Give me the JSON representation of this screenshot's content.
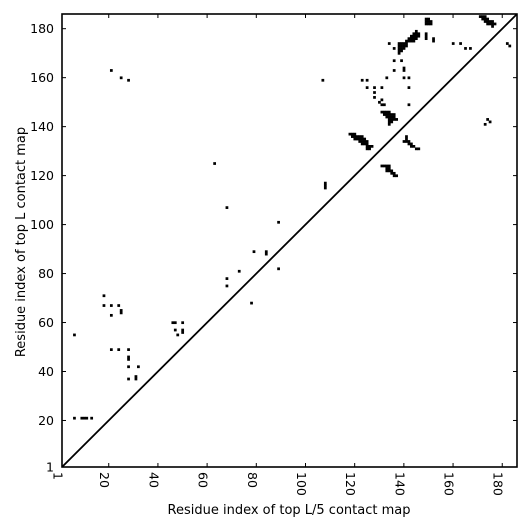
{
  "chart_data": {
    "type": "scatter",
    "marker": "square",
    "title": "",
    "xlabel": "Residue index of top L/5 contact map",
    "ylabel": "Residue index of top L contact map",
    "xlim": [
      1,
      186
    ],
    "ylim": [
      1,
      186
    ],
    "xticks": [
      1,
      20,
      40,
      60,
      80,
      100,
      120,
      140,
      160,
      180
    ],
    "yticks": [
      1,
      20,
      40,
      60,
      80,
      100,
      120,
      140,
      160,
      180
    ],
    "grid": false,
    "diagonal": true,
    "colors": {
      "marker": "#000000",
      "diagonal": "#000000",
      "background": "#ffffff"
    },
    "points_upper": [
      [
        21,
        163
      ],
      [
        25,
        160
      ],
      [
        28,
        159
      ],
      [
        63,
        125
      ],
      [
        68,
        107
      ],
      [
        89,
        101
      ],
      [
        79,
        89
      ],
      [
        84,
        89
      ],
      [
        84,
        88
      ],
      [
        73,
        81
      ],
      [
        89,
        82
      ],
      [
        68,
        78
      ],
      [
        68,
        75
      ],
      [
        78,
        68
      ],
      [
        107,
        159
      ],
      [
        108,
        117
      ],
      [
        108,
        116
      ],
      [
        108,
        115
      ],
      [
        123,
        159
      ],
      [
        125,
        159
      ],
      [
        125,
        156
      ],
      [
        128,
        156
      ],
      [
        128,
        154
      ],
      [
        128,
        152
      ],
      [
        131,
        156
      ],
      [
        131,
        151
      ],
      [
        130,
        150
      ],
      [
        131,
        149
      ],
      [
        132,
        149
      ],
      [
        133,
        160
      ],
      [
        134,
        174
      ],
      [
        136,
        172
      ],
      [
        136,
        167
      ],
      [
        139,
        167
      ],
      [
        136,
        163
      ],
      [
        140,
        164
      ],
      [
        140,
        163
      ],
      [
        140,
        160
      ],
      [
        142,
        160
      ],
      [
        142,
        156
      ],
      [
        142,
        149
      ],
      [
        131,
        146
      ],
      [
        132,
        146
      ],
      [
        133,
        146
      ],
      [
        134,
        146
      ],
      [
        132,
        145
      ],
      [
        133,
        145
      ],
      [
        134,
        145
      ],
      [
        135,
        145
      ],
      [
        136,
        145
      ],
      [
        133,
        144
      ],
      [
        134,
        144
      ],
      [
        135,
        144
      ],
      [
        136,
        144
      ],
      [
        134,
        143
      ],
      [
        135,
        143
      ],
      [
        136,
        143
      ],
      [
        137,
        143
      ],
      [
        134,
        142
      ],
      [
        135,
        142
      ],
      [
        134,
        141
      ],
      [
        118,
        137
      ],
      [
        119,
        137
      ],
      [
        120,
        137
      ],
      [
        119,
        136
      ],
      [
        120,
        136
      ],
      [
        121,
        136
      ],
      [
        122,
        136
      ],
      [
        123,
        136
      ],
      [
        120,
        135
      ],
      [
        121,
        135
      ],
      [
        122,
        135
      ],
      [
        123,
        135
      ],
      [
        124,
        135
      ],
      [
        122,
        134
      ],
      [
        123,
        134
      ],
      [
        124,
        134
      ],
      [
        125,
        134
      ],
      [
        123,
        133
      ],
      [
        124,
        133
      ],
      [
        125,
        133
      ],
      [
        125,
        132
      ],
      [
        126,
        132
      ],
      [
        127,
        132
      ],
      [
        125,
        131
      ],
      [
        126,
        131
      ],
      [
        131,
        124
      ],
      [
        132,
        124
      ],
      [
        133,
        124
      ],
      [
        134,
        124
      ],
      [
        133,
        123
      ],
      [
        134,
        123
      ],
      [
        133,
        122
      ],
      [
        134,
        122
      ],
      [
        135,
        122
      ],
      [
        135,
        121
      ],
      [
        136,
        121
      ],
      [
        136,
        120
      ],
      [
        137,
        120
      ],
      [
        141,
        136
      ],
      [
        141,
        135
      ],
      [
        140,
        134
      ],
      [
        141,
        134
      ],
      [
        142,
        134
      ],
      [
        142,
        133
      ],
      [
        143,
        133
      ],
      [
        143,
        132
      ],
      [
        144,
        132
      ],
      [
        145,
        131
      ],
      [
        146,
        131
      ],
      [
        138,
        174
      ],
      [
        139,
        174
      ],
      [
        140,
        174
      ],
      [
        141,
        174
      ],
      [
        138,
        173
      ],
      [
        139,
        173
      ],
      [
        140,
        173
      ],
      [
        141,
        173
      ],
      [
        138,
        172
      ],
      [
        139,
        172
      ],
      [
        140,
        172
      ],
      [
        138,
        171
      ],
      [
        139,
        171
      ],
      [
        138,
        170
      ],
      [
        141,
        175
      ],
      [
        142,
        175
      ],
      [
        143,
        175
      ],
      [
        144,
        175
      ],
      [
        142,
        176
      ],
      [
        143,
        176
      ],
      [
        144,
        176
      ],
      [
        145,
        176
      ],
      [
        143,
        177
      ],
      [
        144,
        177
      ],
      [
        145,
        177
      ],
      [
        146,
        177
      ],
      [
        144,
        178
      ],
      [
        145,
        178
      ],
      [
        146,
        178
      ],
      [
        145,
        179
      ],
      [
        149,
        184
      ],
      [
        150,
        184
      ],
      [
        149,
        183
      ],
      [
        150,
        183
      ],
      [
        151,
        183
      ],
      [
        149,
        182
      ],
      [
        150,
        182
      ],
      [
        151,
        182
      ],
      [
        149,
        178
      ],
      [
        149,
        177
      ],
      [
        149,
        176
      ],
      [
        152,
        176
      ],
      [
        152,
        175
      ],
      [
        160,
        174
      ],
      [
        163,
        174
      ],
      [
        165,
        172
      ],
      [
        167,
        172
      ],
      [
        171,
        185
      ],
      [
        172,
        185
      ],
      [
        173,
        185
      ],
      [
        172,
        184
      ],
      [
        173,
        184
      ],
      [
        174,
        184
      ],
      [
        173,
        183
      ],
      [
        174,
        183
      ],
      [
        175,
        183
      ],
      [
        176,
        183
      ],
      [
        174,
        182
      ],
      [
        175,
        182
      ],
      [
        176,
        182
      ],
      [
        177,
        182
      ],
      [
        176,
        181
      ],
      [
        174,
        143
      ],
      [
        173,
        141
      ],
      [
        175,
        142
      ],
      [
        182,
        174
      ],
      [
        183,
        173
      ]
    ],
    "points_lower": [
      [
        6,
        55
      ],
      [
        6,
        21
      ],
      [
        9,
        21
      ],
      [
        10,
        21
      ],
      [
        11,
        21
      ],
      [
        13,
        21
      ],
      [
        18,
        71
      ],
      [
        18,
        67
      ],
      [
        21,
        67
      ],
      [
        21,
        63
      ],
      [
        24,
        67
      ],
      [
        25,
        65
      ],
      [
        25,
        64
      ],
      [
        21,
        49
      ],
      [
        24,
        49
      ],
      [
        28,
        49
      ],
      [
        28,
        46
      ],
      [
        28,
        45
      ],
      [
        28,
        42
      ],
      [
        28,
        37
      ],
      [
        31,
        38
      ],
      [
        31,
        37
      ],
      [
        32,
        42
      ],
      [
        46,
        60
      ],
      [
        47,
        60
      ],
      [
        47,
        57
      ],
      [
        50,
        60
      ],
      [
        48,
        55
      ],
      [
        50,
        57
      ],
      [
        50,
        56
      ]
    ]
  }
}
